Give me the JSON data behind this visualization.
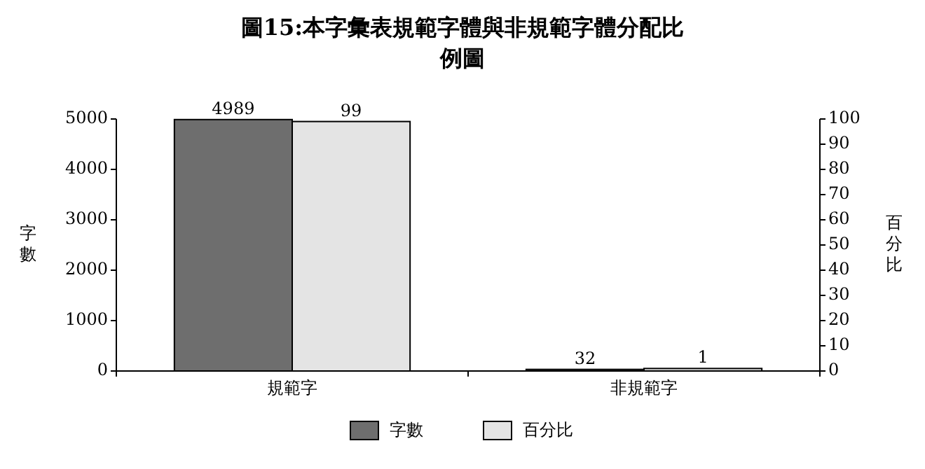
{
  "chart_data": {
    "type": "bar",
    "title": "圖15:本字彙表規範字體與非規範字體分配比例圖",
    "ylabel": "字數",
    "y2label": "百分比",
    "categories": [
      "規範字",
      "非規範字"
    ],
    "series": [
      {
        "name": "字數",
        "color": "#6e6e6e",
        "values": [
          4989,
          32
        ]
      },
      {
        "name": "百分比",
        "color": "#e4e4e4",
        "values": [
          99,
          1
        ],
        "axis": "y2"
      }
    ],
    "ylim": [
      0,
      5000
    ],
    "yticks": [
      0,
      1000,
      2000,
      3000,
      4000,
      5000
    ],
    "y2lim": [
      0,
      100
    ],
    "y2ticks": [
      0,
      10,
      20,
      30,
      40,
      50,
      60,
      70,
      80,
      90,
      100
    ],
    "data_labels": true,
    "legend": "bottom",
    "grid": false
  }
}
